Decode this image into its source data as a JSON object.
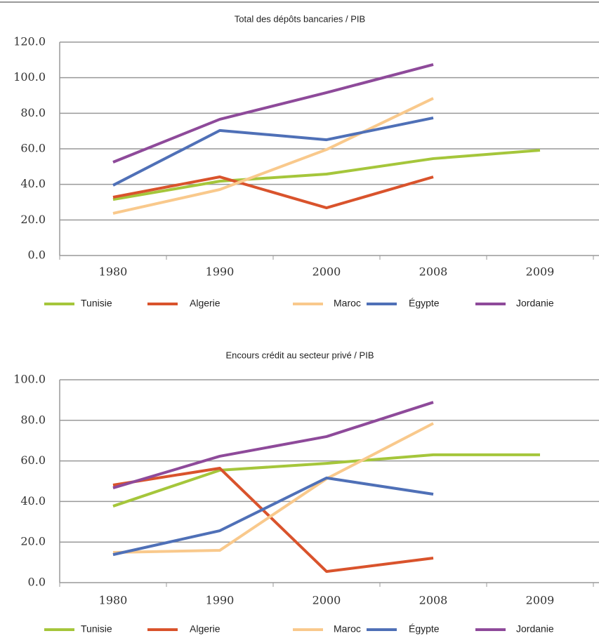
{
  "chart_data": [
    {
      "type": "line",
      "title": "Total des dépôts bancaries / PIB",
      "categories": [
        "1980",
        "1990",
        "2000",
        "2008",
        "2009"
      ],
      "ylim": [
        0,
        120
      ],
      "yticks": [
        {
          "value": 0,
          "label": "0.0"
        },
        {
          "value": 20,
          "label": "20.0"
        },
        {
          "value": 40,
          "label": "40.0"
        },
        {
          "value": 60,
          "label": "60.0"
        },
        {
          "value": 80,
          "label": "80.0"
        },
        {
          "value": 100,
          "label": "100.0"
        },
        {
          "value": 120,
          "label": "120.0"
        }
      ],
      "grid": true,
      "legend": "bottom",
      "series": [
        {
          "name": "Tunisie",
          "color": "#a5c63b",
          "values": [
            31.5,
            41.8,
            45.8,
            54.5,
            59.2
          ]
        },
        {
          "name": "Algerie",
          "color": "#d9532c",
          "values": [
            32.8,
            44.2,
            26.8,
            44.2,
            null
          ]
        },
        {
          "name": "Maroc",
          "color": "#f9c98c",
          "values": [
            23.7,
            37.1,
            59.6,
            88.4,
            null
          ]
        },
        {
          "name": "Égypte",
          "color": "#4f70b7",
          "values": [
            39.5,
            70.3,
            65.1,
            77.4,
            null
          ]
        },
        {
          "name": "Jordanie",
          "color": "#8e4a9a",
          "values": [
            52.5,
            76.6,
            91.6,
            107.4,
            null
          ]
        }
      ]
    },
    {
      "type": "line",
      "title": "Encours crédit au secteur privé / PIB",
      "categories": [
        "1980",
        "1990",
        "2000",
        "2008",
        "2009"
      ],
      "ylim": [
        0,
        100
      ],
      "yticks": [
        {
          "value": 0,
          "label": "0.0"
        },
        {
          "value": 20,
          "label": "20.0"
        },
        {
          "value": 40,
          "label": "40.0"
        },
        {
          "value": 60,
          "label": "60.0"
        },
        {
          "value": 80,
          "label": "80.0"
        },
        {
          "value": 100,
          "label": "100.0"
        }
      ],
      "grid": true,
      "legend": "bottom",
      "series": [
        {
          "name": "Tunisie",
          "color": "#a5c63b",
          "values": [
            37.7,
            55.4,
            58.8,
            63.0,
            63.0
          ]
        },
        {
          "name": "Algerie",
          "color": "#d9532c",
          "values": [
            48.1,
            56.4,
            5.5,
            12.1,
            null
          ]
        },
        {
          "name": "Maroc",
          "color": "#f9c98c",
          "values": [
            14.9,
            15.9,
            51.2,
            78.5,
            null
          ]
        },
        {
          "name": "Égypte",
          "color": "#4f70b7",
          "values": [
            13.8,
            25.6,
            51.6,
            43.6,
            null
          ]
        },
        {
          "name": "Jordanie",
          "color": "#8e4a9a",
          "values": [
            46.7,
            62.3,
            72.0,
            88.9,
            null
          ]
        }
      ]
    }
  ]
}
